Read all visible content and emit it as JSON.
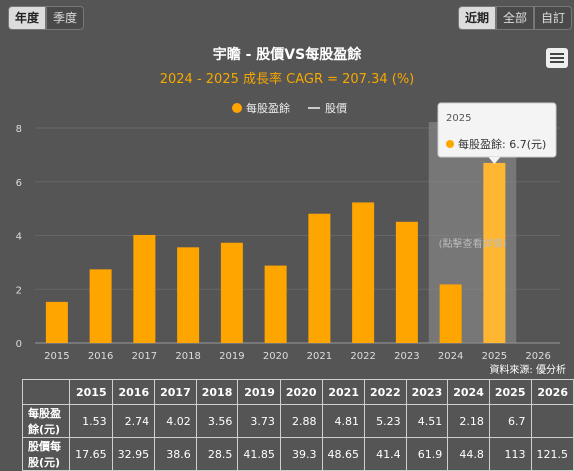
{
  "tabs_left": [
    {
      "label": "年度",
      "active": true
    },
    {
      "label": "季度",
      "active": false
    }
  ],
  "tabs_right": [
    {
      "label": "近期",
      "active": true
    },
    {
      "label": "全部",
      "active": false
    },
    {
      "label": "自訂",
      "active": false
    }
  ],
  "tooltip": {
    "year": "2025",
    "label": "每股盈餘: 6.7(元)"
  },
  "hint": "(點擊查看詳情)",
  "source": "資料來源: 優分析",
  "chart_data": {
    "type": "bar",
    "title": "宇瞻 - 股價VS每股盈餘",
    "subtitle": "2024 - 2025 成長率 CAGR = 207.34 (%)",
    "legend": [
      "每股盈餘",
      "股價"
    ],
    "legend_position": "top",
    "categories": [
      "2015",
      "2016",
      "2017",
      "2018",
      "2019",
      "2020",
      "2021",
      "2022",
      "2023",
      "2024",
      "2025",
      "2026"
    ],
    "series": [
      {
        "name": "每股盈餘",
        "values": [
          1.53,
          2.74,
          4.02,
          3.56,
          3.73,
          2.88,
          4.81,
          5.23,
          4.51,
          2.18,
          6.7,
          null
        ]
      }
    ],
    "yticks": [
      "0",
      "2",
      "4",
      "6",
      "8"
    ],
    "ylim": [
      0,
      8
    ],
    "highlight_range": [
      "2024",
      "2025"
    ],
    "colors": {
      "bar": "#ffa500",
      "line": "#cccccc"
    }
  },
  "table": {
    "headers": [
      "2015",
      "2016",
      "2017",
      "2018",
      "2019",
      "2020",
      "2021",
      "2022",
      "2023",
      "2024",
      "2025",
      "2026"
    ],
    "rows": [
      {
        "label": "每股盈餘(元)",
        "values": [
          "1.53",
          "2.74",
          "4.02",
          "3.56",
          "3.73",
          "2.88",
          "4.81",
          "5.23",
          "4.51",
          "2.18",
          "6.7",
          ""
        ]
      },
      {
        "label": "股價每股(元)",
        "values": [
          "17.65",
          "32.95",
          "38.6",
          "28.5",
          "41.85",
          "39.3",
          "48.65",
          "41.4",
          "61.9",
          "44.8",
          "113",
          "121.5"
        ]
      }
    ]
  }
}
